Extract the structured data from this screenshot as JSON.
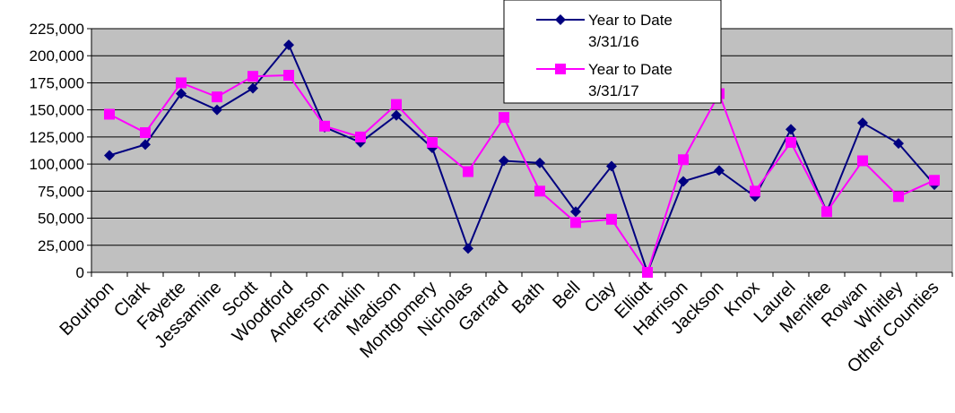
{
  "chart_data": {
    "type": "line",
    "title": "",
    "xlabel": "",
    "ylabel": "",
    "ylim": [
      0,
      225000
    ],
    "yticks": [
      0,
      25000,
      50000,
      75000,
      100000,
      125000,
      150000,
      175000,
      200000,
      225000
    ],
    "ytick_labels": [
      "0",
      "25,000",
      "50,000",
      "75,000",
      "100,000",
      "125,000",
      "150,000",
      "175,000",
      "200,000",
      "225,000"
    ],
    "grid": "horizontal",
    "legend_position": "top-right",
    "plot_background": "#c0c0c0",
    "categories": [
      "Bourbon",
      "Clark",
      "Fayette",
      "Jessamine",
      "Scott",
      "Woodford",
      "Anderson",
      "Franklin",
      "Madison",
      "Montgomery",
      "Nicholas",
      "Garrard",
      "Bath",
      "Bell",
      "Clay",
      "Elliott",
      "Harrison",
      "Jackson",
      "Knox",
      "Laurel",
      "Menifee",
      "Rowan",
      "Whitley",
      "Other Counties"
    ],
    "series": [
      {
        "name": "Year to Date 3/31/16",
        "legend_lines": [
          "Year to Date",
          "3/31/16"
        ],
        "color": "#000080",
        "marker": "diamond",
        "values": [
          108000,
          118000,
          165000,
          150000,
          170000,
          210000,
          134000,
          120000,
          145000,
          115000,
          22000,
          103000,
          101000,
          56000,
          98000,
          0,
          84000,
          94000,
          70000,
          132000,
          56000,
          138000,
          119000,
          81000
        ]
      },
      {
        "name": "Year to Date 3/31/17",
        "legend_lines": [
          "Year to Date",
          "3/31/17"
        ],
        "color": "#ff00ff",
        "marker": "square",
        "values": [
          146000,
          129000,
          175000,
          162000,
          181000,
          182000,
          135000,
          125000,
          155000,
          120000,
          93000,
          143000,
          75000,
          46000,
          49000,
          0,
          104000,
          165000,
          75000,
          120000,
          56000,
          103000,
          70000,
          85000
        ]
      }
    ]
  }
}
